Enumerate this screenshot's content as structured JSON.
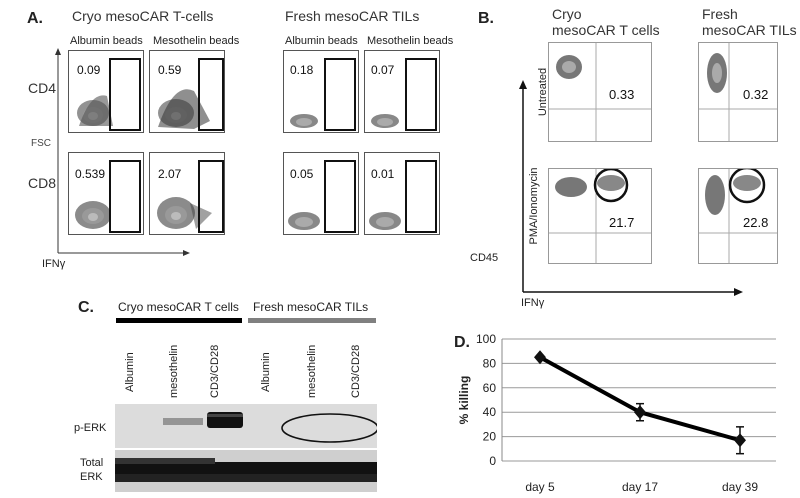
{
  "panelA": {
    "letter": "A.",
    "group_left": "Cryo mesoCAR T-cells",
    "group_right": "Fresh mesoCAR TILs",
    "col_labels": [
      "Albumin beads",
      "Mesothelin beads",
      "Albumin beads",
      "Mesothelin beads"
    ],
    "row_labels": [
      "CD4",
      "CD8"
    ],
    "y_axis": "FSC",
    "x_axis": "IFNγ",
    "values": {
      "cd4": [
        "0.09",
        "0.59",
        "0.18",
        "0.07"
      ],
      "cd8": [
        "0.539",
        "2.07",
        "0.05",
        "0.01"
      ]
    }
  },
  "panelB": {
    "letter": "B.",
    "col_labels": [
      "Cryo\nmesoCAR T cells",
      "Fresh\nmesoCAR TILs"
    ],
    "row_labels": [
      "Untreated",
      "PMA/Ionomycin"
    ],
    "y_axis": "CD45",
    "x_axis": "IFNγ",
    "values": {
      "untreated": [
        "0.33",
        "0.32"
      ],
      "pma": [
        "21.7",
        "22.8"
      ]
    }
  },
  "panelC": {
    "letter": "C.",
    "group_left": "Cryo mesoCAR T cells",
    "group_right": "Fresh mesoCAR TILs",
    "lanes": [
      "Albumin",
      "mesothelin",
      "CD3/CD28",
      "Albumin",
      "mesothelin",
      "CD3/CD28"
    ],
    "blot1_label": "p-ERK",
    "blot2_label": "Total\nERK",
    "colors": {
      "left_bar": "#000000",
      "right_bar": "#808080"
    }
  },
  "panelD": {
    "letter": "D.",
    "chart_data": {
      "type": "line",
      "categories": [
        "day 5",
        "day 17",
        "day 39"
      ],
      "series": [
        {
          "values": [
            85,
            40,
            17
          ],
          "errors": [
            0,
            7,
            11
          ]
        }
      ],
      "ylabel": "% killing",
      "xlabel": "",
      "ylim": [
        0,
        100
      ],
      "yticks": [
        0,
        20,
        40,
        60,
        80,
        100
      ],
      "grid": true,
      "colors": {
        "line": "#000000",
        "grid": "#9a9a9a"
      }
    }
  }
}
